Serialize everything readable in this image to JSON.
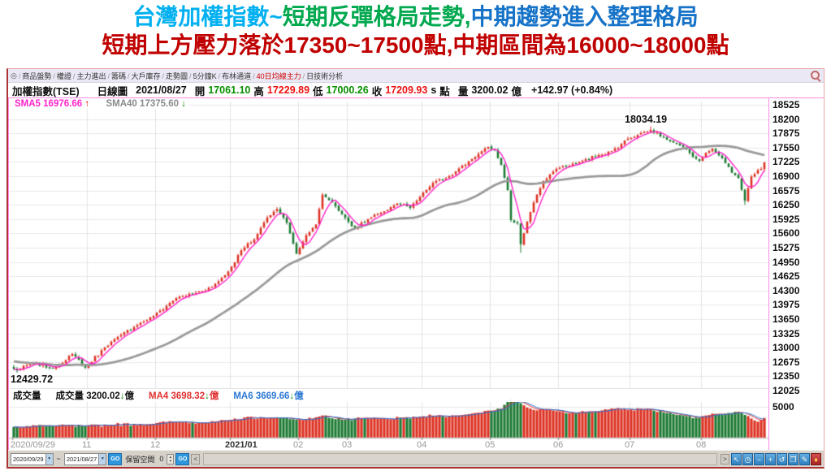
{
  "title": {
    "line1": [
      {
        "text": "台灣加權指數~",
        "color": "#00b0f0"
      },
      {
        "text": "短期反彈格局走勢,",
        "color": "#00a84e"
      },
      {
        "text": "中期趨勢進入整理格局",
        "color": "#1673c8"
      }
    ],
    "line2": [
      {
        "text": "短期上方壓力落於17350~17500點,中期區間為16000~18000點",
        "color": "#c00000"
      }
    ]
  },
  "window": {
    "home_icon_glyph": "◎",
    "tab_separator": "/",
    "tabs": [
      "商品盤勢",
      "權證",
      "主力進出",
      "籌碼",
      "大戶庫存",
      "走勢圖",
      "5分鐘K",
      "布林通道",
      "40日均線主力",
      "日技術分析"
    ],
    "active_tab": "40日均線主力"
  },
  "info": {
    "symbol": "加權指數(TSE)",
    "period": "日線圖",
    "date": "2021/08/27",
    "open_label": "開",
    "open": "17061.10",
    "high_label": "高",
    "high": "17229.89",
    "low_label": "低",
    "low": "17000.26",
    "close_label": "收",
    "close": "17209.93",
    "tick_flag": "s",
    "unit": "點",
    "volume_label": "量",
    "volume": "3200.02",
    "volume_unit": "億",
    "change": "+142.97 (+0.84%)"
  },
  "indicators": {
    "sma5_label": "SMA5",
    "sma5_value": "16976.66",
    "sma5_dir": "↑",
    "sma40_label": "SMA40",
    "sma40_value": "17375.60",
    "sma40_dir": "↓"
  },
  "volume_pane": {
    "title": "成交量",
    "series_label": "成交量",
    "value": "3200.02",
    "value_dir": "↓",
    "unit": "億",
    "ma4_label": "MA4",
    "ma4_value": "3698.32",
    "ma4_dir": "↓",
    "ma4_unit": "億",
    "ma6_label": "MA6",
    "ma6_value": "3669.66",
    "ma6_dir": "↓",
    "ma6_unit": "億"
  },
  "annotations": {
    "high": "18034.19",
    "low": "12429.72"
  },
  "date_axis": [
    {
      "label": "2020/09/29",
      "at": 0,
      "bold": false
    },
    {
      "label": "11",
      "at": 23,
      "bold": false
    },
    {
      "label": "12",
      "at": 44,
      "bold": false
    },
    {
      "label": "2021/01",
      "at": 67,
      "bold": true
    },
    {
      "label": "02",
      "at": 88,
      "bold": false
    },
    {
      "label": "03",
      "at": 103,
      "bold": false
    },
    {
      "label": "04",
      "at": 126,
      "bold": false
    },
    {
      "label": "05",
      "at": 147,
      "bold": false
    },
    {
      "label": "06",
      "at": 168,
      "bold": false
    },
    {
      "label": "07",
      "at": 190,
      "bold": false
    },
    {
      "label": "08",
      "at": 212,
      "bold": false
    }
  ],
  "status_bar": {
    "from_date": "2020/09/29",
    "tilde": "~",
    "to_date": "2021/08/27",
    "go_label": "GO",
    "space_label": "保留空間",
    "space_value": "0",
    "left_arrow": "<",
    "right_arrow": ">",
    "combo_arrow": "▼",
    "icons": [
      {
        "name": "pointer-icon",
        "glyph": "↖",
        "alert": false
      },
      {
        "name": "clock-icon",
        "glyph": "◷",
        "alert": false
      },
      {
        "name": "zoom-out-icon",
        "glyph": "−",
        "alert": false
      },
      {
        "name": "zoom-in-icon",
        "glyph": "+",
        "alert": false
      },
      {
        "name": "undo-icon",
        "glyph": "↺",
        "alert": false
      },
      {
        "name": "window-icon",
        "glyph": "❐",
        "alert": false
      },
      {
        "name": "draw-icon",
        "glyph": "✎",
        "alert": false
      },
      {
        "name": "alert-bell-icon",
        "glyph": "♦",
        "alert": true
      }
    ]
  },
  "colors": {
    "up": "#dd3122",
    "down": "#1d7a33",
    "sma5": "#ff22cc",
    "sma40": "#9a9a9a",
    "vol_ma4": "#e03030",
    "vol_ma6": "#2b78d4",
    "grid": "#e9e9e9",
    "vgrid": "#e2e2ea",
    "baseline": "#cccccc",
    "tick": "#999999"
  },
  "chart_data": {
    "type": "candlestick",
    "symbol": "加權指數(TSE)",
    "period": "日線圖",
    "date_range": [
      "2020/09/29",
      "2021/08/27"
    ],
    "price_gridlines": [
      18525,
      18200,
      17875,
      17550,
      17225,
      16900,
      16575,
      16250,
      15925,
      15600,
      15275,
      14950,
      14625,
      14300,
      13975,
      13650,
      13325,
      13000,
      12675,
      12350,
      12025
    ],
    "volume_axis_value": 5000,
    "month_day_counts": [
      2,
      21,
      21,
      23,
      21,
      15,
      23,
      21,
      21,
      22,
      22,
      20
    ],
    "key_points": {
      "series_low": 12429.72,
      "low_index": 1,
      "series_high": 18034.19,
      "high_index": 196,
      "extra_lows": [
        [
          156,
          15159
        ],
        [
          225,
          16248
        ]
      ],
      "last_bar": {
        "open": 17061.1,
        "high": 17229.89,
        "low": 17000.26,
        "close": 17209.93,
        "volume": 3200.02
      },
      "sma5": 16976.66,
      "sma40": 17375.6,
      "vol_ma4": 3698.32,
      "vol_ma6": 3669.66
    },
    "close_waypoints": [
      [
        0,
        12520
      ],
      [
        1,
        12480
      ],
      [
        6,
        12660
      ],
      [
        12,
        12530
      ],
      [
        18,
        12860
      ],
      [
        22,
        12546
      ],
      [
        28,
        13010
      ],
      [
        33,
        13290
      ],
      [
        38,
        13520
      ],
      [
        43,
        13722
      ],
      [
        50,
        14130
      ],
      [
        56,
        14250
      ],
      [
        61,
        14390
      ],
      [
        66,
        14732
      ],
      [
        70,
        15214
      ],
      [
        74,
        15463
      ],
      [
        78,
        15963
      ],
      [
        81,
        16153
      ],
      [
        84,
        15840
      ],
      [
        87,
        15138
      ],
      [
        90,
        15560
      ],
      [
        93,
        15802
      ],
      [
        95,
        16480
      ],
      [
        98,
        16310
      ],
      [
        102,
        15953
      ],
      [
        105,
        15700
      ],
      [
        109,
        15920
      ],
      [
        113,
        16070
      ],
      [
        118,
        16280
      ],
      [
        122,
        16180
      ],
      [
        125,
        16431
      ],
      [
        129,
        16750
      ],
      [
        133,
        16854
      ],
      [
        137,
        17076
      ],
      [
        141,
        17290
      ],
      [
        146,
        17566
      ],
      [
        148,
        17490
      ],
      [
        150,
        17160
      ],
      [
        152,
        16583
      ],
      [
        153,
        15902
      ],
      [
        155,
        15827
      ],
      [
        156,
        15353
      ],
      [
        158,
        15870
      ],
      [
        160,
        16303
      ],
      [
        163,
        16791
      ],
      [
        167,
        17068
      ],
      [
        171,
        17140
      ],
      [
        175,
        17250
      ],
      [
        180,
        17380
      ],
      [
        184,
        17470
      ],
      [
        189,
        17755
      ],
      [
        193,
        17880
      ],
      [
        196,
        17950
      ],
      [
        200,
        17780
      ],
      [
        204,
        17650
      ],
      [
        207,
        17510
      ],
      [
        211,
        17247
      ],
      [
        213,
        17430
      ],
      [
        215,
        17526
      ],
      [
        218,
        17310
      ],
      [
        221,
        16980
      ],
      [
        223,
        16858
      ],
      [
        225,
        16341
      ],
      [
        227,
        16893
      ],
      [
        229,
        17040
      ],
      [
        230,
        17067
      ],
      [
        231,
        17209.93
      ]
    ],
    "volume_waypoints": [
      [
        0,
        1750
      ],
      [
        10,
        1900
      ],
      [
        22,
        1850
      ],
      [
        30,
        2100
      ],
      [
        43,
        2250
      ],
      [
        50,
        2600
      ],
      [
        60,
        2500
      ],
      [
        66,
        2750
      ],
      [
        72,
        3400
      ],
      [
        78,
        3100
      ],
      [
        81,
        3300
      ],
      [
        87,
        2900
      ],
      [
        90,
        3000
      ],
      [
        95,
        3600
      ],
      [
        102,
        2900
      ],
      [
        108,
        3100
      ],
      [
        115,
        3000
      ],
      [
        120,
        3200
      ],
      [
        125,
        3400
      ],
      [
        131,
        3600
      ],
      [
        137,
        3500
      ],
      [
        141,
        3900
      ],
      [
        146,
        4400
      ],
      [
        150,
        4700
      ],
      [
        153,
        6300
      ],
      [
        154,
        5900
      ],
      [
        156,
        5600
      ],
      [
        158,
        4900
      ],
      [
        160,
        4500
      ],
      [
        163,
        4600
      ],
      [
        167,
        4300
      ],
      [
        172,
        4000
      ],
      [
        177,
        4200
      ],
      [
        182,
        4600
      ],
      [
        186,
        4800
      ],
      [
        189,
        4500
      ],
      [
        193,
        4700
      ],
      [
        196,
        4600
      ],
      [
        200,
        4100
      ],
      [
        204,
        3700
      ],
      [
        207,
        3500
      ],
      [
        211,
        3200
      ],
      [
        213,
        3600
      ],
      [
        215,
        3900
      ],
      [
        218,
        3700
      ],
      [
        221,
        4000
      ],
      [
        223,
        4200
      ],
      [
        225,
        3700
      ],
      [
        227,
        3100
      ],
      [
        229,
        2600
      ],
      [
        231,
        3200.02
      ]
    ],
    "prehistory": {
      "start": 12900,
      "end": 12500
    },
    "noise": {
      "close": 40,
      "volume": 260
    }
  }
}
